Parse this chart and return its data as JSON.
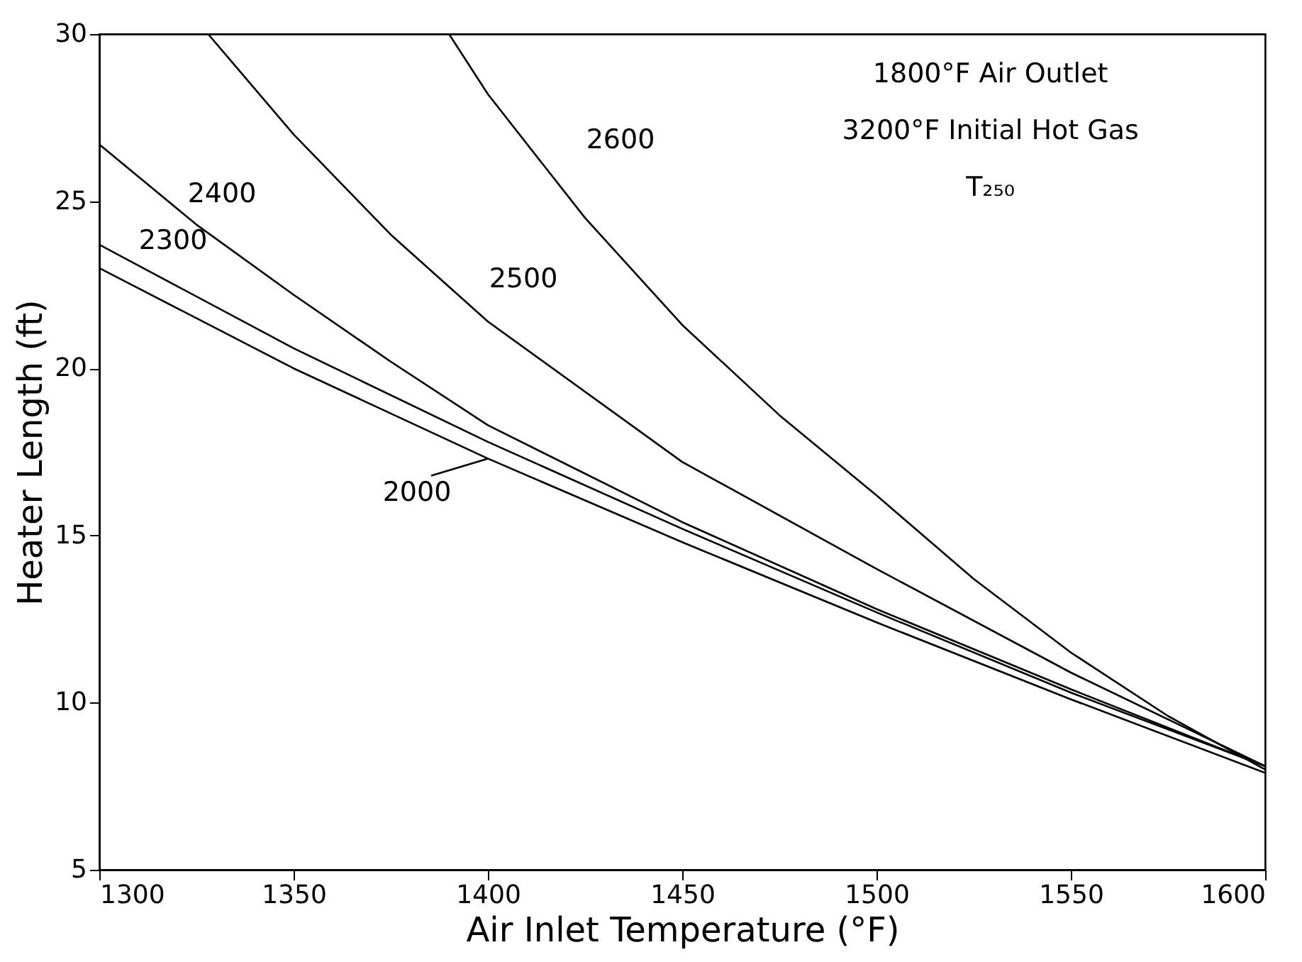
{
  "chart_data": {
    "type": "line",
    "xlabel": "Air Inlet Temperature (°F)",
    "ylabel": "Heater Length (ft)",
    "xlim": [
      1300,
      1600
    ],
    "xticks": [
      1300,
      1350,
      1400,
      1450,
      1500,
      1550,
      1600
    ],
    "ylim": [
      5,
      30
    ],
    "yticks": [
      5,
      10,
      15,
      20,
      25,
      30
    ],
    "grid": false,
    "marker": "none",
    "line_style": "solid",
    "series": [
      {
        "name": "2000",
        "color": "#000000",
        "x": [
          1300,
          1350,
          1400,
          1450,
          1500,
          1550,
          1600
        ],
        "values": [
          23.0,
          20.0,
          17.3,
          14.8,
          12.4,
          10.1,
          7.9
        ]
      },
      {
        "name": "2300",
        "color": "#000000",
        "x": [
          1300,
          1350,
          1400,
          1450,
          1500,
          1550,
          1600
        ],
        "values": [
          23.7,
          20.6,
          17.8,
          15.2,
          12.7,
          10.3,
          8.1
        ]
      },
      {
        "name": "2400",
        "color": "#000000",
        "x": [
          1300,
          1325,
          1350,
          1375,
          1400,
          1450,
          1500,
          1550,
          1600
        ],
        "values": [
          26.7,
          24.3,
          22.2,
          20.2,
          18.3,
          15.4,
          12.8,
          10.4,
          8.1
        ]
      },
      {
        "name": "2500",
        "color": "#000000",
        "x": [
          1328,
          1350,
          1375,
          1400,
          1450,
          1500,
          1550,
          1600
        ],
        "values": [
          30.0,
          27.0,
          24.0,
          21.4,
          17.2,
          14.0,
          10.9,
          8.1
        ]
      },
      {
        "name": "2600",
        "color": "#000000",
        "x": [
          1390,
          1400,
          1425,
          1450,
          1475,
          1500,
          1525,
          1550,
          1575,
          1600
        ],
        "values": [
          30.0,
          28.2,
          24.5,
          21.3,
          18.6,
          16.2,
          13.7,
          11.5,
          9.6,
          8.0
        ]
      }
    ],
    "annotations": [
      "1800°F Air Outlet",
      "3200°F Initial Hot Gas",
      "T₂₅₀"
    ]
  }
}
